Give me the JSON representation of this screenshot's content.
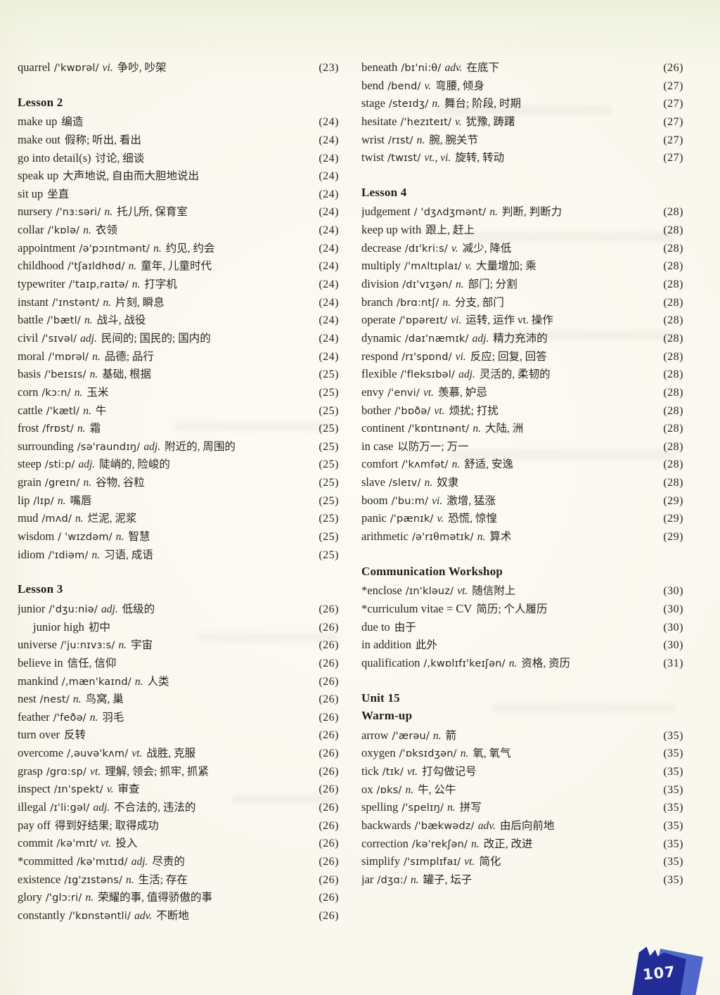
{
  "page": {
    "number": "107"
  },
  "badge_colors": {
    "dark": "#212c96",
    "light": "#5068cc",
    "text": "#f5f4f6"
  },
  "columns": [
    {
      "name": "left",
      "rows": [
        {
          "t": "e",
          "en": "quarrel",
          "ipa": "/'kwɒrəl/",
          "pos": "vi.",
          "zh": "争吵, 吵架",
          "pg": "(23)"
        },
        {
          "t": "h",
          "en": "Lesson 2",
          "gap": true
        },
        {
          "t": "e",
          "en": "make up",
          "ipa": "",
          "pos": "",
          "zh": "编造",
          "pg": "(24)"
        },
        {
          "t": "e",
          "en": "make out",
          "ipa": "",
          "pos": "",
          "zh": "假称; 听出, 看出",
          "pg": "(24)"
        },
        {
          "t": "e",
          "en": "go into detail(s)",
          "ipa": "",
          "pos": "",
          "zh": "讨论, 细谈",
          "pg": "(24)"
        },
        {
          "t": "e",
          "en": "speak up",
          "ipa": "",
          "pos": "",
          "zh": "大声地说, 自由而大胆地说出",
          "pg": "(24)"
        },
        {
          "t": "e",
          "en": "sit up",
          "ipa": "",
          "pos": "",
          "zh": "坐直",
          "pg": "(24)"
        },
        {
          "t": "e",
          "en": "nursery",
          "ipa": "/'nɜ:səri/",
          "pos": "n.",
          "zh": "托儿所, 保育室",
          "pg": "(24)"
        },
        {
          "t": "e",
          "en": "collar",
          "ipa": "/'kɒlə/",
          "pos": "n.",
          "zh": "衣领",
          "pg": "(24)"
        },
        {
          "t": "e",
          "en": "appointment",
          "ipa": "/ə'pɔɪntmənt/",
          "pos": "n.",
          "zh": "约见, 约会",
          "pg": "(24)"
        },
        {
          "t": "e",
          "en": "childhood",
          "ipa": "/'tʃaɪldhʊd/",
          "pos": "n.",
          "zh": "童年, 儿童时代",
          "pg": "(24)"
        },
        {
          "t": "e",
          "en": "typewriter",
          "ipa": "/'taɪp,raɪtə/",
          "pos": "n.",
          "zh": "打字机",
          "pg": "(24)"
        },
        {
          "t": "e",
          "en": "instant",
          "ipa": "/'ɪnstənt/",
          "pos": "n.",
          "zh": "片刻, 瞬息",
          "pg": "(24)"
        },
        {
          "t": "e",
          "en": "battle",
          "ipa": "/'bætl/",
          "pos": "n.",
          "zh": "战斗, 战役",
          "pg": "(24)"
        },
        {
          "t": "e",
          "en": "civil",
          "ipa": "/'sɪvəl/",
          "pos": "adj.",
          "zh": "民间的; 国民的; 国内的",
          "pg": "(24)"
        },
        {
          "t": "e",
          "en": "moral",
          "ipa": "/'mɒrəl/",
          "pos": "n.",
          "zh": "品德; 品行",
          "pg": "(24)"
        },
        {
          "t": "e",
          "en": "basis",
          "ipa": "/'beɪsɪs/",
          "pos": "n.",
          "zh": "基础, 根据",
          "pg": "(25)"
        },
        {
          "t": "e",
          "en": "corn",
          "ipa": "/kɔ:n/",
          "pos": "n.",
          "zh": "玉米",
          "pg": "(25)"
        },
        {
          "t": "e",
          "en": "cattle",
          "ipa": "/'kætl/",
          "pos": "n.",
          "zh": "牛",
          "pg": "(25)"
        },
        {
          "t": "e",
          "en": "frost",
          "ipa": "/frɒst/",
          "pos": "n.",
          "zh": "霜",
          "pg": "(25)"
        },
        {
          "t": "e",
          "en": "surrounding",
          "ipa": "/sə'raundɪŋ/",
          "pos": "adj.",
          "zh": "附近的, 周围的",
          "pg": "(25)"
        },
        {
          "t": "e",
          "en": "steep",
          "ipa": "/sti:p/",
          "pos": "adj.",
          "zh": "陡峭的, 险峻的",
          "pg": "(25)"
        },
        {
          "t": "e",
          "en": "grain",
          "ipa": "/greɪn/",
          "pos": "n.",
          "zh": "谷物, 谷粒",
          "pg": "(25)"
        },
        {
          "t": "e",
          "en": "lip",
          "ipa": "/lɪp/",
          "pos": "n.",
          "zh": "嘴唇",
          "pg": "(25)"
        },
        {
          "t": "e",
          "en": "mud",
          "ipa": "/mʌd/",
          "pos": "n.",
          "zh": "烂泥, 泥浆",
          "pg": "(25)"
        },
        {
          "t": "e",
          "en": "wisdom",
          "ipa": "/ 'wɪzdəm/",
          "pos": "n.",
          "zh": "智慧",
          "pg": "(25)"
        },
        {
          "t": "e",
          "en": "idiom",
          "ipa": "/'ɪdiəm/",
          "pos": "n.",
          "zh": "习语, 成语",
          "pg": "(25)"
        },
        {
          "t": "h",
          "en": "Lesson 3",
          "gap": true
        },
        {
          "t": "e",
          "en": "junior",
          "ipa": "/'dʒu:niə/",
          "pos": "adj.",
          "zh": "低级的",
          "pg": "(26)"
        },
        {
          "t": "e",
          "en": "junior high",
          "ipa": "",
          "pos": "",
          "zh": "初中",
          "pg": "(26)",
          "indent": true
        },
        {
          "t": "e",
          "en": "universe",
          "ipa": "/'ju:nɪvɜ:s/",
          "pos": "n.",
          "zh": "宇宙",
          "pg": "(26)"
        },
        {
          "t": "e",
          "en": "believe in",
          "ipa": "",
          "pos": "",
          "zh": "信任, 信仰",
          "pg": "(26)"
        },
        {
          "t": "e",
          "en": "mankind",
          "ipa": "/,mæn'kaɪnd/",
          "pos": "n.",
          "zh": "人类",
          "pg": "(26)"
        },
        {
          "t": "e",
          "en": "nest",
          "ipa": "/nest/",
          "pos": "n.",
          "zh": "鸟窝, 巢",
          "pg": "(26)"
        },
        {
          "t": "e",
          "en": "feather",
          "ipa": "/'feðə/",
          "pos": "n.",
          "zh": "羽毛",
          "pg": "(26)"
        },
        {
          "t": "e",
          "en": "turn over",
          "ipa": "",
          "pos": "",
          "zh": "反转",
          "pg": "(26)"
        },
        {
          "t": "e",
          "en": "overcome",
          "ipa": "/,əuvə'kʌm/",
          "pos": "vt.",
          "zh": "战胜, 克服",
          "pg": "(26)"
        },
        {
          "t": "e",
          "en": "grasp",
          "ipa": "/grɑ:sp/",
          "pos": "vt.",
          "zh": "理解, 领会; 抓牢, 抓紧",
          "pg": "(26)"
        },
        {
          "t": "e",
          "en": "inspect",
          "ipa": "/ɪn'spekt/",
          "pos": "v.",
          "zh": "审查",
          "pg": "(26)"
        },
        {
          "t": "e",
          "en": "illegal",
          "ipa": "/ɪ'li:gəl/",
          "pos": "adj.",
          "zh": "不合法的, 违法的",
          "pg": "(26)"
        },
        {
          "t": "e",
          "en": "pay off",
          "ipa": "",
          "pos": "",
          "zh": "得到好结果; 取得成功",
          "pg": "(26)"
        },
        {
          "t": "e",
          "en": "commit",
          "ipa": "/kə'mɪt/",
          "pos": "vt.",
          "zh": "投入",
          "pg": "(26)"
        },
        {
          "t": "e",
          "en": "*committed",
          "ipa": "/kə'mɪtɪd/",
          "pos": "adj.",
          "zh": "尽责的",
          "pg": "(26)"
        },
        {
          "t": "e",
          "en": "existence",
          "ipa": "/ɪg'zɪstəns/",
          "pos": "n.",
          "zh": "生活; 存在",
          "pg": "(26)"
        },
        {
          "t": "e",
          "en": "glory",
          "ipa": "/'glɔ:ri/",
          "pos": "n.",
          "zh": "荣耀的事, 值得骄傲的事",
          "pg": "(26)"
        },
        {
          "t": "e",
          "en": "constantly",
          "ipa": "/'kɒnstəntli/",
          "pos": "adv.",
          "zh": "不断地",
          "pg": "(26)"
        }
      ]
    },
    {
      "name": "right",
      "rows": [
        {
          "t": "e",
          "en": "beneath",
          "ipa": "/bɪ'ni:θ/",
          "pos": "adv.",
          "zh": "在底下",
          "pg": "(26)"
        },
        {
          "t": "e",
          "en": "bend",
          "ipa": "/bend/",
          "pos": "v.",
          "zh": "弯腰, 倾身",
          "pg": "(27)"
        },
        {
          "t": "e",
          "en": "stage",
          "ipa": "/steɪdʒ/",
          "pos": "n.",
          "zh": "舞台; 阶段, 时期",
          "pg": "(27)"
        },
        {
          "t": "e",
          "en": "hesitate",
          "ipa": "/'hezɪteɪt/",
          "pos": "v.",
          "zh": "犹豫, 踌躇",
          "pg": "(27)"
        },
        {
          "t": "e",
          "en": "wrist",
          "ipa": "/rɪst/",
          "pos": "n.",
          "zh": "腕, 腕关节",
          "pg": "(27)"
        },
        {
          "t": "e",
          "en": "twist",
          "ipa": "/twɪst/",
          "pos": "vt., vi.",
          "zh": "旋转, 转动",
          "pg": "(27)"
        },
        {
          "t": "h",
          "en": "Lesson 4",
          "gap": true
        },
        {
          "t": "e",
          "en": "judgement",
          "ipa": "/ 'dʒʌdʒmənt/",
          "pos": "n.",
          "zh": "判断, 判断力",
          "pg": "(28)"
        },
        {
          "t": "e",
          "en": "keep up with",
          "ipa": "",
          "pos": "",
          "zh": "跟上, 赶上",
          "pg": "(28)"
        },
        {
          "t": "e",
          "en": "decrease",
          "ipa": "/dɪ'kri:s/",
          "pos": "v.",
          "zh": "减少, 降低",
          "pg": "(28)"
        },
        {
          "t": "e",
          "en": "multiply",
          "ipa": "/'mʌltɪplaɪ/",
          "pos": "v.",
          "zh": "大量增加; 乘",
          "pg": "(28)"
        },
        {
          "t": "e",
          "en": "division",
          "ipa": "/dɪ'vɪʒən/",
          "pos": "n.",
          "zh": "部门; 分割",
          "pg": "(28)"
        },
        {
          "t": "e",
          "en": "branch",
          "ipa": "/brɑ:ntʃ/",
          "pos": "n.",
          "zh": "分支, 部门",
          "pg": "(28)"
        },
        {
          "t": "e",
          "en": "operate",
          "ipa": "/'ɒpəreɪt/",
          "pos": "vi.",
          "zh": "运转, 运作 vt. 操作",
          "pg": "(28)"
        },
        {
          "t": "e",
          "en": "dynamic",
          "ipa": "/daɪ'næmɪk/",
          "pos": "adj.",
          "zh": "精力充沛的",
          "pg": "(28)"
        },
        {
          "t": "e",
          "en": "respond",
          "ipa": "/rɪ'spɒnd/",
          "pos": "vi.",
          "zh": "反应; 回复, 回答",
          "pg": "(28)"
        },
        {
          "t": "e",
          "en": "flexible",
          "ipa": "/'fleksɪbəl/",
          "pos": "adj.",
          "zh": "灵活的, 柔韧的",
          "pg": "(28)"
        },
        {
          "t": "e",
          "en": "envy",
          "ipa": "/'envi/",
          "pos": "vt.",
          "zh": "羡慕, 妒忌",
          "pg": "(28)"
        },
        {
          "t": "e",
          "en": "bother",
          "ipa": "/'bɒðə/",
          "pos": "vt.",
          "zh": "烦扰; 打扰",
          "pg": "(28)"
        },
        {
          "t": "e",
          "en": "continent",
          "ipa": "/'kɒntɪnənt/",
          "pos": "n.",
          "zh": "大陆, 洲",
          "pg": "(28)"
        },
        {
          "t": "e",
          "en": "in case",
          "ipa": "",
          "pos": "",
          "zh": "以防万一; 万一",
          "pg": "(28)"
        },
        {
          "t": "e",
          "en": "comfort",
          "ipa": "/'kʌmfət/",
          "pos": "n.",
          "zh": "舒适, 安逸",
          "pg": "(28)"
        },
        {
          "t": "e",
          "en": "slave",
          "ipa": "/sleɪv/",
          "pos": "n.",
          "zh": "奴隶",
          "pg": "(28)"
        },
        {
          "t": "e",
          "en": "boom",
          "ipa": "/'bu:m/",
          "pos": "vi.",
          "zh": "激增, 猛涨",
          "pg": "(29)"
        },
        {
          "t": "e",
          "en": "panic",
          "ipa": "/'pænɪk/",
          "pos": "v.",
          "zh": "恐慌, 惊惶",
          "pg": "(29)"
        },
        {
          "t": "e",
          "en": "arithmetic",
          "ipa": "/ə'rɪθmətɪk/",
          "pos": "n.",
          "zh": "算术",
          "pg": "(29)"
        },
        {
          "t": "h",
          "en": "Communication Workshop",
          "gap": true
        },
        {
          "t": "e",
          "en": "*enclose",
          "ipa": "/ɪn'kləuz/",
          "pos": "vt.",
          "zh": "随信附上",
          "pg": "(30)"
        },
        {
          "t": "e",
          "en": "*curriculum vitae = CV",
          "ipa": "",
          "pos": "",
          "zh": "简历; 个人履历",
          "pg": "(30)"
        },
        {
          "t": "e",
          "en": "due to",
          "ipa": "",
          "pos": "",
          "zh": "由于",
          "pg": "(30)"
        },
        {
          "t": "e",
          "en": "in addition",
          "ipa": "",
          "pos": "",
          "zh": "此外",
          "pg": "(30)"
        },
        {
          "t": "e",
          "en": "qualification",
          "ipa": "/,kwɒlɪfɪ'keɪʃən/",
          "pos": "n.",
          "zh": "资格, 资历",
          "pg": "(31)"
        },
        {
          "t": "h",
          "en": "Unit 15",
          "gap": true
        },
        {
          "t": "h",
          "en": "Warm-up",
          "gap": false
        },
        {
          "t": "e",
          "en": "arrow",
          "ipa": "/'ærəu/",
          "pos": "n.",
          "zh": "箭",
          "pg": "(35)"
        },
        {
          "t": "e",
          "en": "oxygen",
          "ipa": "/'ɒksɪdʒən/",
          "pos": "n.",
          "zh": "氧, 氧气",
          "pg": "(35)"
        },
        {
          "t": "e",
          "en": "tick",
          "ipa": "/tɪk/",
          "pos": "vt.",
          "zh": "打勾做记号",
          "pg": "(35)"
        },
        {
          "t": "e",
          "en": "ox",
          "ipa": "/ɒks/",
          "pos": "n.",
          "zh": "牛, 公牛",
          "pg": "(35)"
        },
        {
          "t": "e",
          "en": "spelling",
          "ipa": "/'spelɪŋ/",
          "pos": "n.",
          "zh": "拼写",
          "pg": "(35)"
        },
        {
          "t": "e",
          "en": "backwards",
          "ipa": "/'bækwədz/",
          "pos": "adv.",
          "zh": "由后向前地",
          "pg": "(35)"
        },
        {
          "t": "e",
          "en": "correction",
          "ipa": "/kə'rekʃən/",
          "pos": "n.",
          "zh": "改正, 改进",
          "pg": "(35)"
        },
        {
          "t": "e",
          "en": "simplify",
          "ipa": "/'sɪmplɪfaɪ/",
          "pos": "vt.",
          "zh": "简化",
          "pg": "(35)"
        },
        {
          "t": "e",
          "en": "jar",
          "ipa": "/dʒɑ:/",
          "pos": "n.",
          "zh": "罐子, 坛子",
          "pg": "(35)"
        }
      ]
    }
  ]
}
